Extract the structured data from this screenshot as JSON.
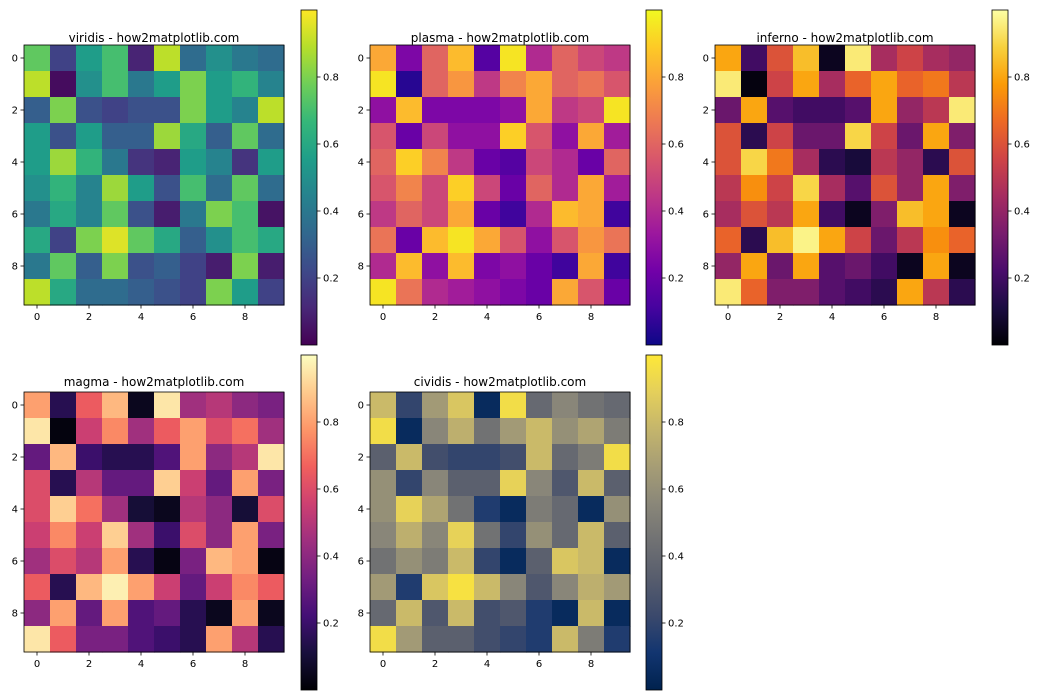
{
  "chart_data": [
    {
      "type": "heatmap",
      "title": "viridis - how2matplotlib.com",
      "colormap": "viridis",
      "xticks": [
        0,
        2,
        4,
        6,
        8
      ],
      "yticks": [
        0,
        2,
        4,
        6,
        8
      ],
      "colorbar_ticks": [
        0.2,
        0.4,
        0.6,
        0.8
      ],
      "vmin": 0.0,
      "vmax": 1.0,
      "values": [
        [
          0.75,
          0.2,
          0.55,
          0.7,
          0.1,
          0.9,
          0.35,
          0.5,
          0.4,
          0.35
        ],
        [
          0.9,
          0.03,
          0.5,
          0.7,
          0.4,
          0.55,
          0.8,
          0.55,
          0.65,
          0.45
        ],
        [
          0.3,
          0.8,
          0.25,
          0.2,
          0.25,
          0.25,
          0.8,
          0.55,
          0.45,
          0.9
        ],
        [
          0.55,
          0.25,
          0.55,
          0.3,
          0.3,
          0.85,
          0.6,
          0.3,
          0.75,
          0.35
        ],
        [
          0.55,
          0.85,
          0.65,
          0.4,
          0.15,
          0.1,
          0.55,
          0.45,
          0.15,
          0.55
        ],
        [
          0.5,
          0.65,
          0.45,
          0.85,
          0.55,
          0.25,
          0.7,
          0.35,
          0.75,
          0.35
        ],
        [
          0.4,
          0.6,
          0.45,
          0.75,
          0.25,
          0.08,
          0.4,
          0.8,
          0.7,
          0.05
        ],
        [
          0.6,
          0.2,
          0.8,
          0.95,
          0.75,
          0.6,
          0.3,
          0.5,
          0.7,
          0.6
        ],
        [
          0.4,
          0.75,
          0.3,
          0.8,
          0.25,
          0.3,
          0.2,
          0.08,
          0.8,
          0.08
        ],
        [
          0.9,
          0.6,
          0.35,
          0.35,
          0.3,
          0.25,
          0.2,
          0.8,
          0.55,
          0.2
        ]
      ]
    },
    {
      "type": "heatmap",
      "title": "plasma - how2matplotlib.com",
      "colormap": "plasma",
      "xticks": [
        0,
        2,
        4,
        6,
        8
      ],
      "yticks": [
        0,
        2,
        4,
        6,
        8
      ],
      "colorbar_ticks": [
        0.2,
        0.4,
        0.6,
        0.8
      ],
      "vmin": 0.0,
      "vmax": 1.0,
      "values": [
        [
          0.8,
          0.25,
          0.6,
          0.85,
          0.15,
          0.95,
          0.4,
          0.6,
          0.5,
          0.45
        ],
        [
          0.95,
          0.05,
          0.6,
          0.75,
          0.45,
          0.7,
          0.8,
          0.6,
          0.65,
          0.55
        ],
        [
          0.3,
          0.85,
          0.25,
          0.25,
          0.25,
          0.3,
          0.8,
          0.45,
          0.5,
          0.95
        ],
        [
          0.55,
          0.2,
          0.5,
          0.3,
          0.3,
          0.9,
          0.55,
          0.3,
          0.8,
          0.35
        ],
        [
          0.6,
          0.9,
          0.7,
          0.45,
          0.2,
          0.15,
          0.5,
          0.4,
          0.2,
          0.6
        ],
        [
          0.55,
          0.7,
          0.5,
          0.9,
          0.5,
          0.2,
          0.6,
          0.4,
          0.8,
          0.35
        ],
        [
          0.45,
          0.6,
          0.5,
          0.8,
          0.2,
          0.1,
          0.4,
          0.85,
          0.8,
          0.1
        ],
        [
          0.65,
          0.2,
          0.85,
          0.95,
          0.8,
          0.55,
          0.3,
          0.55,
          0.75,
          0.65
        ],
        [
          0.4,
          0.85,
          0.3,
          0.85,
          0.25,
          0.3,
          0.2,
          0.1,
          0.8,
          0.1
        ],
        [
          0.95,
          0.65,
          0.4,
          0.35,
          0.3,
          0.25,
          0.2,
          0.8,
          0.55,
          0.2
        ]
      ]
    },
    {
      "type": "heatmap",
      "title": "inferno - how2matplotlib.com",
      "colormap": "inferno",
      "xticks": [
        0,
        2,
        4,
        6,
        8
      ],
      "yticks": [
        0,
        2,
        4,
        6,
        8
      ],
      "colorbar_ticks": [
        0.2,
        0.4,
        0.6,
        0.8
      ],
      "vmin": 0.0,
      "vmax": 1.0,
      "values": [
        [
          0.8,
          0.2,
          0.6,
          0.85,
          0.05,
          0.95,
          0.45,
          0.55,
          0.45,
          0.4
        ],
        [
          0.95,
          0.02,
          0.55,
          0.8,
          0.45,
          0.65,
          0.8,
          0.65,
          0.7,
          0.5
        ],
        [
          0.3,
          0.8,
          0.25,
          0.2,
          0.2,
          0.25,
          0.8,
          0.4,
          0.5,
          0.95
        ],
        [
          0.6,
          0.15,
          0.55,
          0.3,
          0.3,
          0.9,
          0.55,
          0.3,
          0.8,
          0.35
        ],
        [
          0.6,
          0.9,
          0.7,
          0.45,
          0.15,
          0.1,
          0.5,
          0.4,
          0.15,
          0.6
        ],
        [
          0.5,
          0.75,
          0.55,
          0.9,
          0.45,
          0.25,
          0.6,
          0.4,
          0.8,
          0.35
        ],
        [
          0.45,
          0.6,
          0.5,
          0.8,
          0.2,
          0.05,
          0.35,
          0.85,
          0.8,
          0.05
        ],
        [
          0.65,
          0.15,
          0.85,
          0.97,
          0.8,
          0.55,
          0.3,
          0.5,
          0.75,
          0.65
        ],
        [
          0.4,
          0.8,
          0.3,
          0.8,
          0.25,
          0.3,
          0.2,
          0.05,
          0.8,
          0.05
        ],
        [
          0.95,
          0.65,
          0.35,
          0.35,
          0.25,
          0.2,
          0.15,
          0.8,
          0.5,
          0.15
        ]
      ]
    },
    {
      "type": "heatmap",
      "title": "magma - how2matplotlib.com",
      "colormap": "magma",
      "xticks": [
        0,
        2,
        4,
        6,
        8
      ],
      "yticks": [
        0,
        2,
        4,
        6,
        8
      ],
      "colorbar_ticks": [
        0.2,
        0.4,
        0.6,
        0.8
      ],
      "vmin": 0.0,
      "vmax": 1.0,
      "values": [
        [
          0.8,
          0.15,
          0.65,
          0.85,
          0.05,
          0.95,
          0.45,
          0.5,
          0.4,
          0.35
        ],
        [
          0.95,
          0.02,
          0.55,
          0.75,
          0.45,
          0.65,
          0.8,
          0.6,
          0.7,
          0.45
        ],
        [
          0.3,
          0.85,
          0.2,
          0.15,
          0.15,
          0.25,
          0.8,
          0.4,
          0.5,
          0.95
        ],
        [
          0.6,
          0.15,
          0.5,
          0.3,
          0.3,
          0.9,
          0.55,
          0.3,
          0.8,
          0.35
        ],
        [
          0.6,
          0.9,
          0.7,
          0.45,
          0.1,
          0.05,
          0.5,
          0.4,
          0.1,
          0.6
        ],
        [
          0.55,
          0.75,
          0.55,
          0.9,
          0.45,
          0.2,
          0.6,
          0.4,
          0.8,
          0.35
        ],
        [
          0.45,
          0.6,
          0.5,
          0.8,
          0.15,
          0.03,
          0.35,
          0.85,
          0.8,
          0.03
        ],
        [
          0.65,
          0.15,
          0.85,
          0.97,
          0.8,
          0.55,
          0.3,
          0.55,
          0.75,
          0.65
        ],
        [
          0.4,
          0.8,
          0.3,
          0.8,
          0.25,
          0.3,
          0.15,
          0.05,
          0.8,
          0.05
        ],
        [
          0.95,
          0.65,
          0.35,
          0.35,
          0.25,
          0.2,
          0.15,
          0.8,
          0.5,
          0.15
        ]
      ]
    },
    {
      "type": "heatmap",
      "title": "cividis - how2matplotlib.com",
      "colormap": "cividis",
      "xticks": [
        0,
        2,
        4,
        6,
        8
      ],
      "yticks": [
        0,
        2,
        4,
        6,
        8
      ],
      "colorbar_ticks": [
        0.2,
        0.4,
        0.6,
        0.8
      ],
      "vmin": 0.0,
      "vmax": 1.0,
      "values": [
        [
          0.8,
          0.2,
          0.65,
          0.85,
          0.05,
          0.95,
          0.4,
          0.55,
          0.45,
          0.4
        ],
        [
          0.95,
          0.05,
          0.55,
          0.75,
          0.45,
          0.65,
          0.8,
          0.6,
          0.7,
          0.5
        ],
        [
          0.35,
          0.8,
          0.25,
          0.2,
          0.2,
          0.25,
          0.8,
          0.4,
          0.5,
          0.95
        ],
        [
          0.6,
          0.2,
          0.55,
          0.35,
          0.35,
          0.9,
          0.55,
          0.3,
          0.8,
          0.35
        ],
        [
          0.6,
          0.9,
          0.7,
          0.45,
          0.15,
          0.05,
          0.5,
          0.4,
          0.05,
          0.6
        ],
        [
          0.55,
          0.75,
          0.55,
          0.9,
          0.45,
          0.2,
          0.6,
          0.4,
          0.8,
          0.35
        ],
        [
          0.45,
          0.6,
          0.5,
          0.8,
          0.2,
          0.05,
          0.35,
          0.85,
          0.8,
          0.05
        ],
        [
          0.65,
          0.15,
          0.85,
          0.97,
          0.8,
          0.55,
          0.3,
          0.55,
          0.75,
          0.65
        ],
        [
          0.4,
          0.8,
          0.3,
          0.8,
          0.25,
          0.3,
          0.15,
          0.05,
          0.8,
          0.05
        ],
        [
          0.95,
          0.65,
          0.35,
          0.35,
          0.25,
          0.2,
          0.15,
          0.8,
          0.5,
          0.15
        ]
      ]
    }
  ]
}
